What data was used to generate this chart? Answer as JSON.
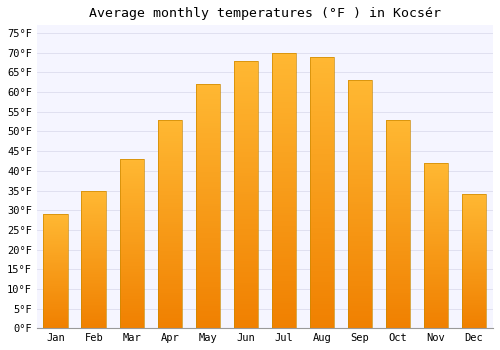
{
  "title": "Average monthly temperatures (°F ) in Kocsér",
  "months": [
    "Jan",
    "Feb",
    "Mar",
    "Apr",
    "May",
    "Jun",
    "Jul",
    "Aug",
    "Sep",
    "Oct",
    "Nov",
    "Dec"
  ],
  "values": [
    29,
    35,
    43,
    53,
    62,
    68,
    70,
    69,
    63,
    53,
    42,
    34
  ],
  "bar_color_top": "#FFB733",
  "bar_color_bottom": "#F08000",
  "bar_edge_color": "#CC8800",
  "background_color": "#FFFFFF",
  "plot_bg_color": "#F5F5FF",
  "grid_color": "#DDDDEE",
  "ylim": [
    0,
    77
  ],
  "yticks": [
    0,
    5,
    10,
    15,
    20,
    25,
    30,
    35,
    40,
    45,
    50,
    55,
    60,
    65,
    70,
    75
  ],
  "title_fontsize": 9.5,
  "tick_fontsize": 7.5,
  "font_family": "monospace",
  "bar_width": 0.65
}
